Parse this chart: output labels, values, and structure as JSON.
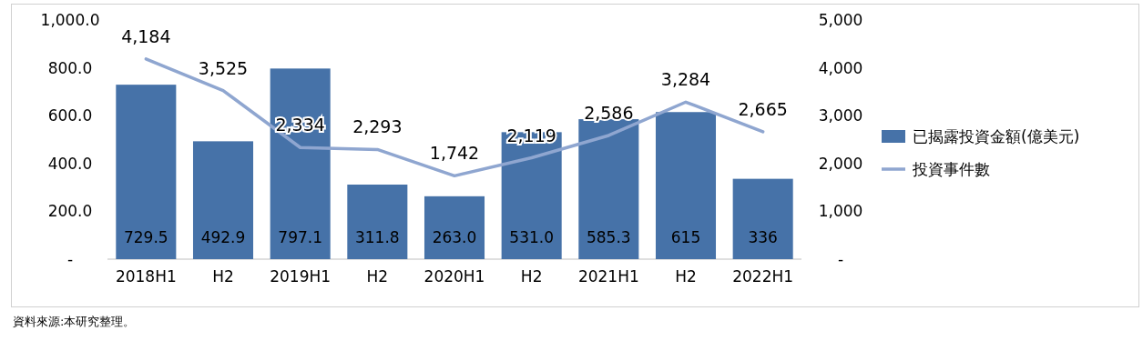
{
  "chart_data": {
    "type": "bar",
    "categories": [
      "2018H1",
      "H2",
      "2019H1",
      "H2",
      "2020H1",
      "H2",
      "2021H1",
      "H2",
      "2022H1"
    ],
    "series": [
      {
        "name": "已揭露投資金額(億美元)",
        "color": "#4672a8",
        "values": [
          729.5,
          492.9,
          797.1,
          311.8,
          263.0,
          531.0,
          585.3,
          615,
          336
        ],
        "value_labels": [
          "729.5",
          "492.9",
          "797.1",
          "311.8",
          "263.0",
          "531.0",
          "585.3",
          "615",
          "336"
        ]
      },
      {
        "name": "投資事件數",
        "type": "line",
        "axis": "y2",
        "color": "#8fa6d0",
        "values": [
          4184,
          3525,
          2334,
          2293,
          1742,
          2119,
          2586,
          3284,
          2665
        ],
        "value_labels": [
          "4,184",
          "3,525",
          "2,334",
          "2,293",
          "1,742",
          "2,119",
          "2,586",
          "3,284",
          "2,665"
        ]
      }
    ],
    "ylim": [
      0,
      1000
    ],
    "yticks": [
      {
        "value": 0,
        "label": "-"
      },
      {
        "value": 200,
        "label": "200.0"
      },
      {
        "value": 400,
        "label": "400.0"
      },
      {
        "value": 600,
        "label": "600.0"
      },
      {
        "value": 800,
        "label": "800.0"
      },
      {
        "value": 1000,
        "label": "1,000.0"
      }
    ],
    "y2lim": [
      0,
      5000
    ],
    "y2ticks": [
      {
        "value": 0,
        "label": "-"
      },
      {
        "value": 1000,
        "label": "1,000"
      },
      {
        "value": 2000,
        "label": "2,000"
      },
      {
        "value": 3000,
        "label": "3,000"
      },
      {
        "value": 4000,
        "label": "4,000"
      },
      {
        "value": 5000,
        "label": "5,000"
      }
    ],
    "marker": "none",
    "line_style": "solid",
    "grid": false,
    "legend": "right",
    "annotations": [
      "資料來源:本研究整理。"
    ]
  }
}
